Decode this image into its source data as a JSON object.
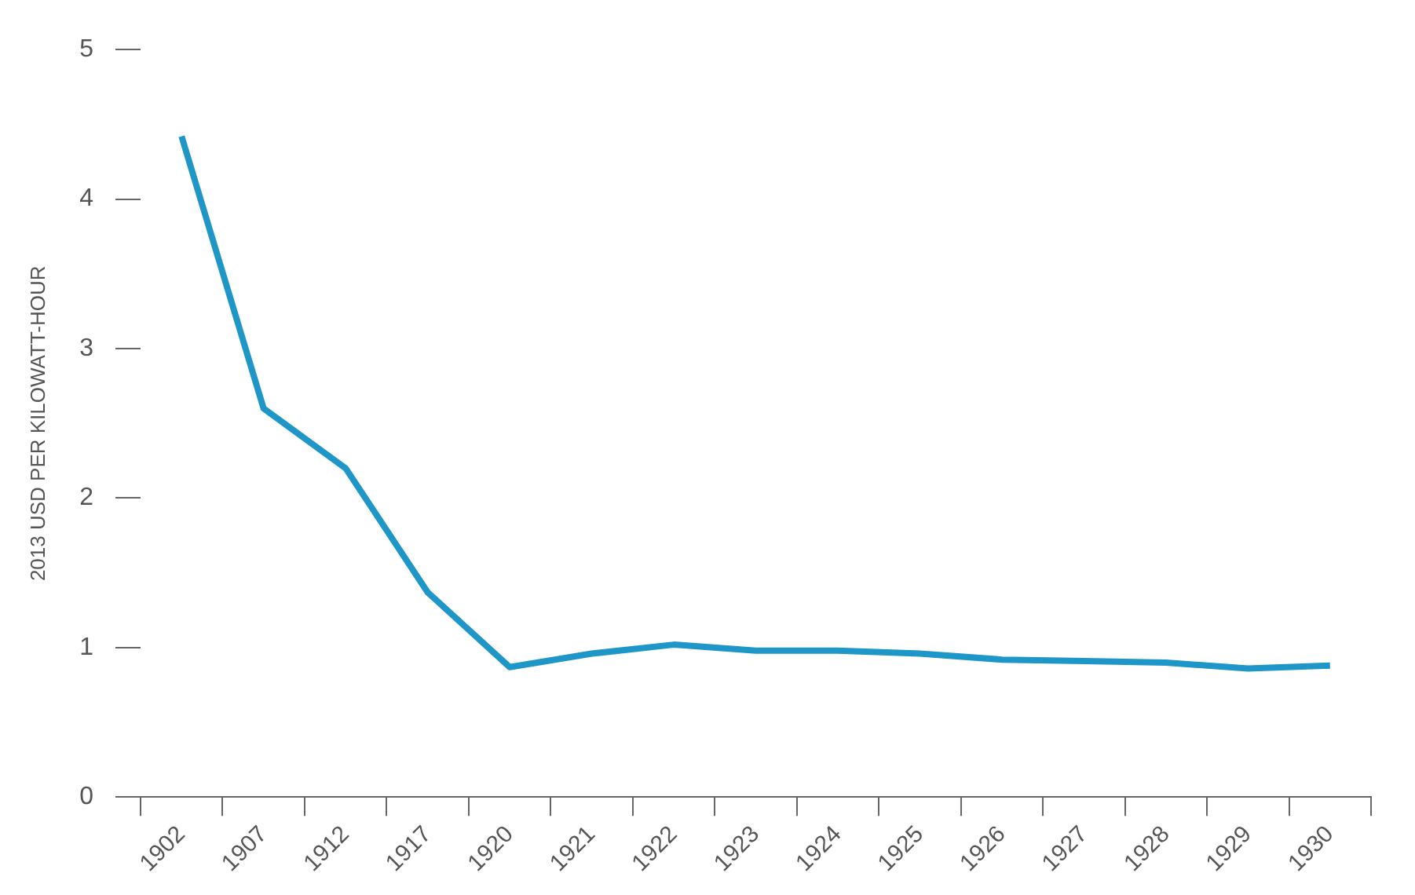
{
  "chart_data": {
    "type": "line",
    "ylabel": "2013 USD PER KILOWATT-HOUR",
    "categories": [
      "1902",
      "1907",
      "1912",
      "1917",
      "1920",
      "1921",
      "1922",
      "1923",
      "1924",
      "1925",
      "1926",
      "1927",
      "1928",
      "1929",
      "1930"
    ],
    "series": [
      {
        "color": "#1f96c8",
        "values": [
          4.42,
          2.6,
          2.2,
          1.37,
          0.87,
          0.96,
          1.02,
          0.98,
          0.98,
          0.96,
          0.92,
          0.91,
          0.9,
          0.86,
          0.88
        ]
      }
    ],
    "ylim": [
      0,
      5
    ],
    "yticks": [
      0,
      1,
      2,
      3,
      4,
      5
    ],
    "grid": false,
    "legend": false,
    "marker": "none",
    "line_style": "solid"
  }
}
